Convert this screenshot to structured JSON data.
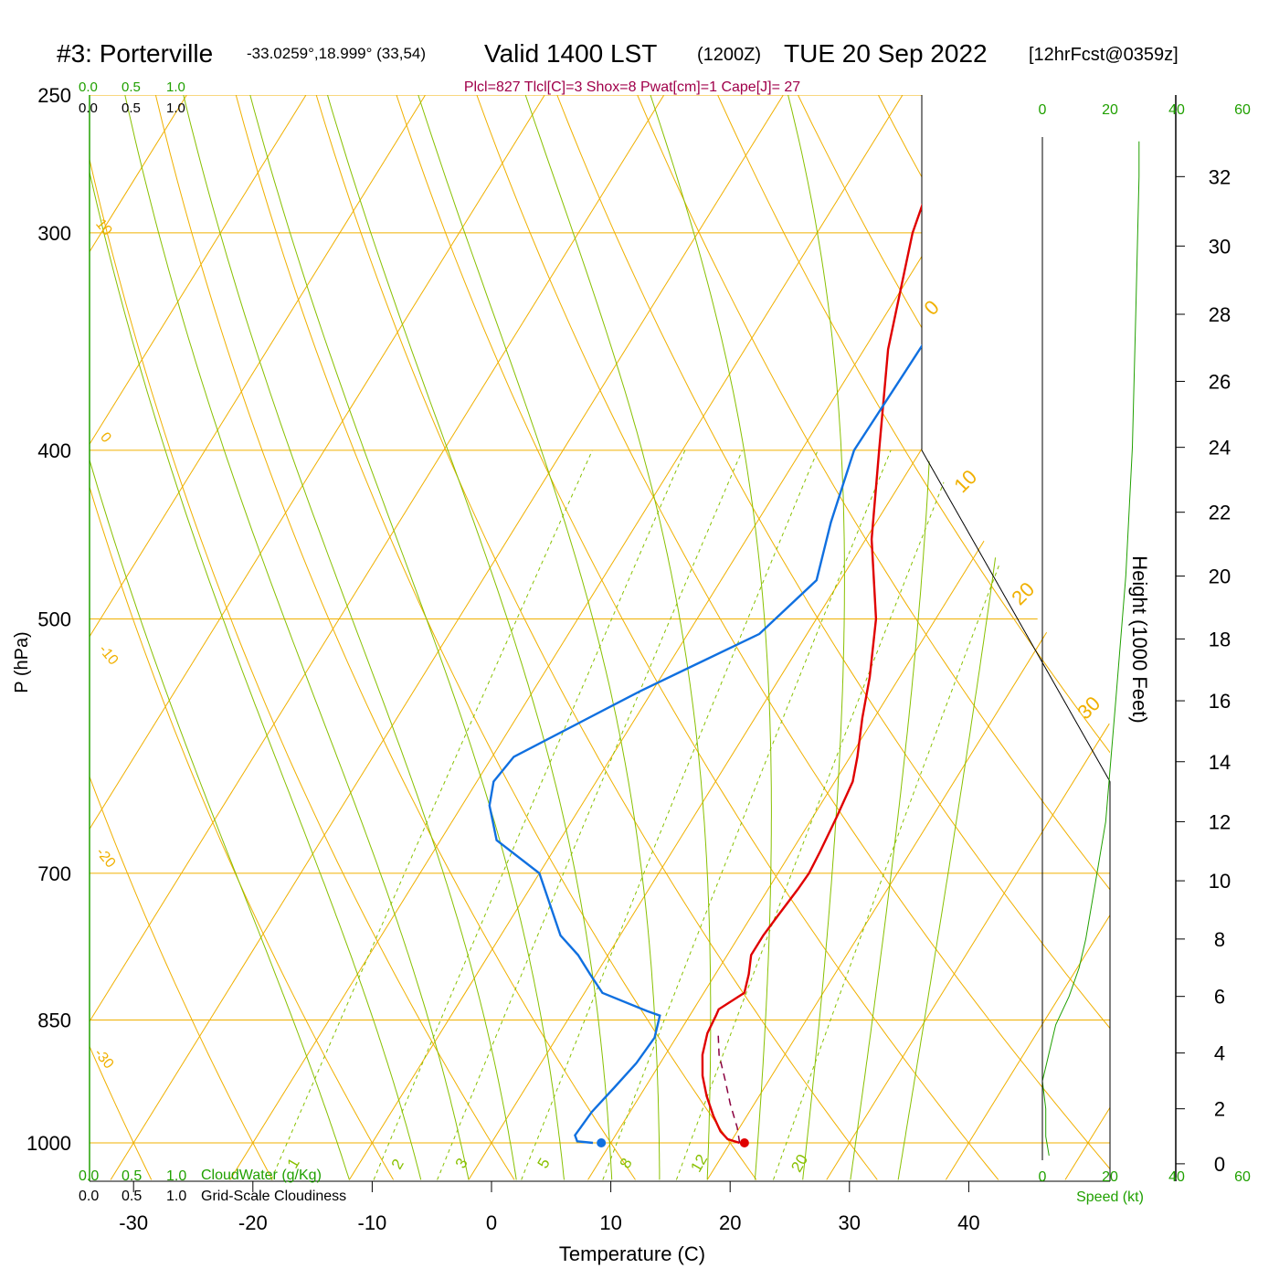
{
  "header": {
    "station": "#3: Porterville",
    "coords": "-33.0259°,18.999° (33,54)",
    "valid_prefix": "Valid 1400 LST",
    "utc": "(1200Z)",
    "date": "TUE 20 Sep 2022",
    "forecast": "[12hrFcst@0359z]"
  },
  "indices": "Plcl=827 Tlcl[C]=3 Shox=8 Pwat[cm]=1 Cape[J]= 27",
  "left_scale": {
    "top_green": [
      "0.0",
      "0.5",
      "1.0"
    ],
    "top_black": [
      "0.0",
      "0.5",
      "1.0"
    ]
  },
  "bottom_legend": {
    "cloudwater_ticks": [
      "0.0",
      "0.5",
      "1.0"
    ],
    "cloudwater_label": "CloudWater (g/Kg)",
    "cloudiness_ticks": [
      "0.0",
      "0.5",
      "1.0"
    ],
    "cloudiness_label": "Grid-Scale Cloudiness"
  },
  "speed_axis": {
    "ticks": [
      "0",
      "20",
      "40",
      "60"
    ],
    "label": "Speed (kt)"
  },
  "colors": {
    "isobar": "#f0b000",
    "isotherm": "#f0b000",
    "dry_adiabat": "#f0b000",
    "moist_adiabat": "#88c000",
    "mixing_ratio": "#88c000",
    "temperature": "#e00000",
    "dewpoint": "#1070e0",
    "parcel": "#8b0040",
    "index_text": "#a0004a",
    "green_text": "#20a000"
  },
  "chart_data": {
    "type": "skew-t",
    "xlabel": "Temperature (C)",
    "ylabel": "P (hPa)",
    "y2label": "Height (1000 Feet)",
    "x_ticks": [
      -30,
      -20,
      -10,
      0,
      10,
      20,
      30,
      40
    ],
    "p_ticks": [
      250,
      300,
      400,
      500,
      700,
      850,
      1000
    ],
    "height_ticks": [
      0,
      2,
      4,
      6,
      8,
      10,
      12,
      14,
      16,
      18,
      20,
      22,
      24,
      26,
      28,
      30,
      32
    ],
    "isotherm_labels": [
      "0",
      "10",
      "20",
      "30"
    ],
    "isotherm_label_left": [
      "10",
      "0",
      "-10",
      "-20",
      "-30"
    ],
    "mixing_ratio_labels": [
      "1",
      "2",
      "3",
      "5",
      "8",
      "12",
      "20"
    ],
    "series": [
      {
        "name": "Temperature",
        "points": [
          [
            1000,
            20.8
          ],
          [
            995,
            19.6
          ],
          [
            985,
            18.6
          ],
          [
            965,
            17.2
          ],
          [
            940,
            15.6
          ],
          [
            915,
            14.2
          ],
          [
            890,
            13.1
          ],
          [
            865,
            12.4
          ],
          [
            845,
            12.2
          ],
          [
            838,
            12.1
          ],
          [
            820,
            13.4
          ],
          [
            800,
            12.8
          ],
          [
            780,
            12.0
          ],
          [
            760,
            12.0
          ],
          [
            740,
            12.2
          ],
          [
            715,
            12.5
          ],
          [
            700,
            12.6
          ],
          [
            680,
            12.4
          ],
          [
            650,
            12.0
          ],
          [
            620,
            11.5
          ],
          [
            600,
            10.6
          ],
          [
            570,
            9.0
          ],
          [
            540,
            7.5
          ],
          [
            500,
            5.0
          ],
          [
            450,
            0.5
          ],
          [
            400,
            -3.5
          ],
          [
            350,
            -8.0
          ],
          [
            300,
            -12.0
          ],
          [
            270,
            -13.8
          ]
        ]
      },
      {
        "name": "Dewpoint",
        "points": [
          [
            1000,
            8.5
          ],
          [
            998,
            7.1
          ],
          [
            990,
            6.6
          ],
          [
            960,
            6.8
          ],
          [
            930,
            7.4
          ],
          [
            900,
            8.0
          ],
          [
            870,
            8.2
          ],
          [
            845,
            7.5
          ],
          [
            840,
            6.2
          ],
          [
            820,
            1.5
          ],
          [
            800,
            -0.5
          ],
          [
            780,
            -2.5
          ],
          [
            760,
            -5.0
          ],
          [
            700,
            -10.0
          ],
          [
            670,
            -15.3
          ],
          [
            640,
            -17.7
          ],
          [
            620,
            -18.6
          ],
          [
            600,
            -18.2
          ],
          [
            550,
            -11.0
          ],
          [
            510,
            -4.0
          ],
          [
            475,
            -2.0
          ],
          [
            440,
            -3.8
          ],
          [
            400,
            -5.6
          ],
          [
            360,
            -5.4
          ],
          [
            340,
            -5.3
          ],
          [
            300,
            -5.6
          ],
          [
            270,
            -7.5
          ]
        ]
      },
      {
        "name": "Parcel",
        "points": [
          [
            1000,
            20.8
          ],
          [
            980,
            19.8
          ],
          [
            950,
            18.0
          ],
          [
            920,
            16.3
          ],
          [
            890,
            14.5
          ],
          [
            865,
            13.3
          ]
        ]
      }
    ],
    "surface_markers": [
      {
        "name": "surface-temperature",
        "p": 1000,
        "t": 21.2
      },
      {
        "name": "surface-dewpoint",
        "p": 1000,
        "t": 9.2
      }
    ],
    "wind_speed_profile_kt": [
      [
        0.3,
        2
      ],
      [
        1,
        1
      ],
      [
        2,
        1
      ],
      [
        3,
        0
      ],
      [
        3.5,
        1
      ],
      [
        4,
        2
      ],
      [
        5,
        4
      ],
      [
        6,
        8
      ],
      [
        7,
        11
      ],
      [
        8,
        13
      ],
      [
        10,
        16
      ],
      [
        12,
        19
      ],
      [
        16,
        22
      ],
      [
        20,
        25
      ],
      [
        24,
        27
      ],
      [
        28,
        28
      ],
      [
        32,
        29
      ],
      [
        33,
        29
      ]
    ]
  }
}
